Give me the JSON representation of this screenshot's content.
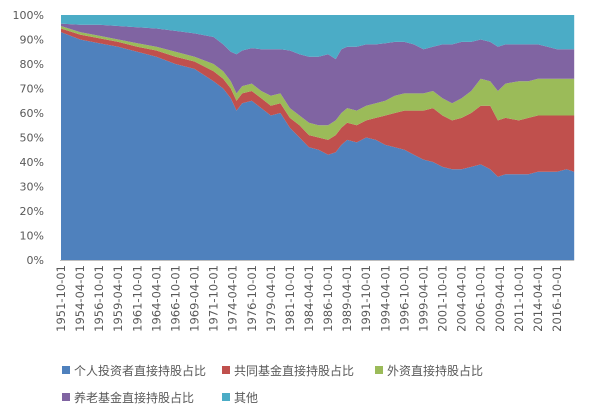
{
  "chart_data": {
    "type": "area",
    "stacked": true,
    "grid": false,
    "legend": "bottom",
    "ylim": [
      0,
      100
    ],
    "y_tick_labels": [
      "0%",
      "10%",
      "20%",
      "30%",
      "40%",
      "50%",
      "60%",
      "70%",
      "80%",
      "90%",
      "100%"
    ],
    "x_tick_labels": [
      "1951-10-01",
      "1954-04-01",
      "1956-10-01",
      "1959-04-01",
      "1961-10-01",
      "1964-04-01",
      "1966-10-01",
      "1969-04-01",
      "1971-10-01",
      "1974-04-01",
      "1976-10-01",
      "1979-04-01",
      "1981-10-01",
      "1984-04-01",
      "1986-10-01",
      "1989-04-01",
      "1991-10-01",
      "1994-04-01",
      "1996-10-01",
      "1999-04-01",
      "2001-10-01",
      "2004-04-01",
      "2006-10-01",
      "2009-04-01",
      "2011-10-01",
      "2014-04-01",
      "2016-10-01"
    ],
    "x": [
      "1951-10-01",
      "1954-04-01",
      "1956-10-01",
      "1959-04-01",
      "1961-10-01",
      "1964-04-01",
      "1966-10-01",
      "1969-04-01",
      "1971-10-01",
      "1973-01-01",
      "1974-01-01",
      "1974-10-01",
      "1975-07-01",
      "1976-10-01",
      "1978-01-01",
      "1979-04-01",
      "1980-07-01",
      "1981-10-01",
      "1983-01-01",
      "1984-04-01",
      "1985-07-01",
      "1986-10-01",
      "1987-10-01",
      "1988-07-01",
      "1989-04-01",
      "1990-07-01",
      "1991-10-01",
      "1993-01-01",
      "1994-04-01",
      "1995-07-01",
      "1996-10-01",
      "1998-01-01",
      "1999-04-01",
      "2000-07-01",
      "2001-10-01",
      "2003-01-01",
      "2004-04-01",
      "2005-07-01",
      "2006-10-01",
      "2008-01-01",
      "2009-01-01",
      "2010-01-01",
      "2011-10-01",
      "2013-01-01",
      "2014-04-01",
      "2015-07-01",
      "2016-10-01",
      "2018-01-01",
      "2019-01-01"
    ],
    "series": [
      {
        "name": "个人投资者直接持股占比",
        "color": "#4F81BD",
        "values": [
          93,
          90,
          88.5,
          87,
          85,
          83,
          80,
          78,
          73,
          70,
          66,
          61,
          64,
          65,
          62,
          59,
          60,
          54,
          50,
          46,
          45,
          43,
          44,
          47,
          49,
          48,
          50,
          49,
          47,
          46,
          45,
          43,
          41,
          40,
          38,
          37,
          37,
          38,
          39,
          37,
          34,
          35,
          35,
          35,
          36,
          36,
          36,
          37,
          36
        ]
      },
      {
        "name": "共同基金直接持股占比",
        "color": "#C0504D",
        "values": [
          1.5,
          2,
          2,
          2,
          2,
          2.5,
          3,
          3,
          4,
          4,
          4,
          4,
          4,
          4,
          4,
          4,
          4,
          4,
          5,
          5,
          5,
          6,
          7,
          7,
          7,
          7,
          7,
          9,
          12,
          14,
          16,
          18,
          20,
          22,
          21,
          20,
          21,
          22,
          24,
          26,
          23,
          23,
          22,
          23,
          23,
          23,
          23,
          22,
          23
        ]
      },
      {
        "name": "外资直接持股占比",
        "color": "#9BBB59",
        "values": [
          1,
          1,
          1,
          1,
          1.5,
          1.5,
          2,
          2,
          3,
          3,
          3,
          3,
          3,
          3,
          3,
          4,
          4,
          4,
          4,
          5,
          5,
          6,
          6,
          6,
          6,
          6,
          6,
          6,
          6,
          7,
          7,
          7,
          7,
          7,
          7,
          7,
          8,
          9,
          11,
          10,
          12,
          14,
          16,
          15,
          15,
          15,
          15,
          15,
          15
        ]
      },
      {
        "name": "养老基金直接持股占比",
        "color": "#8064A2",
        "values": [
          1,
          3,
          4.5,
          5.5,
          6.5,
          7.5,
          8.5,
          9.5,
          11,
          11,
          12,
          16,
          14.5,
          14.5,
          17,
          19,
          18,
          23.5,
          25,
          27,
          28,
          29,
          25,
          26,
          25,
          26,
          25,
          24,
          23.5,
          22,
          21,
          20,
          18,
          18,
          22,
          24,
          23,
          20,
          16,
          16,
          18,
          16,
          15,
          15,
          14,
          13,
          12,
          12,
          12
        ]
      },
      {
        "name": "其他",
        "color": "#4BACC6",
        "values": [
          3.5,
          4,
          4,
          4.5,
          5,
          5.5,
          6.5,
          7.5,
          9,
          12,
          15,
          16,
          14.5,
          13.5,
          14,
          14,
          14,
          14.5,
          16,
          17,
          17,
          16,
          18,
          14,
          13,
          13,
          12,
          12,
          11.5,
          11,
          11,
          12,
          14,
          13,
          12,
          12,
          11,
          11,
          10,
          11,
          13,
          12,
          12,
          12,
          12,
          13,
          14,
          14,
          14
        ]
      }
    ]
  }
}
